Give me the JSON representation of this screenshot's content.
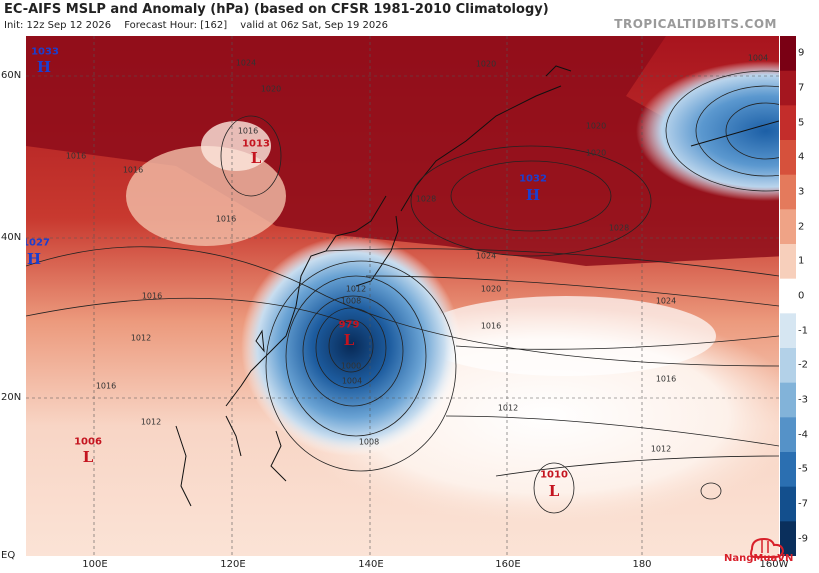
{
  "header": {
    "title": "EC-AIFS MSLP and Anomaly (hPa) (based on CFSR 1981-2010 Climatology)",
    "init": "Init: 12z Sep 12 2026",
    "forecast_hour": "Forecast Hour: [162]",
    "valid": "valid at 06z Sat, Sep 19 2026",
    "brand": "TROPICALTIDBITS.COM"
  },
  "axes": {
    "lat_labels": [
      "60N",
      "40N",
      "20N",
      "EQ"
    ],
    "lon_labels": [
      "100E",
      "120E",
      "140E",
      "160E",
      "180",
      "160W"
    ]
  },
  "colorbar": {
    "labels": [
      "9",
      "7",
      "5",
      "4",
      "3",
      "2",
      "1",
      "0",
      "-1",
      "-2",
      "-3",
      "-4",
      "-5",
      "-7",
      "-9"
    ],
    "colors": [
      "#7a0014",
      "#a4161f",
      "#c32d2b",
      "#d6513c",
      "#e47a5c",
      "#efa386",
      "#f7cfbb",
      "#ffffff",
      "#d6e6f2",
      "#b3d1e8",
      "#82b3d9",
      "#5592c8",
      "#2b6fb1",
      "#134f8d",
      "#0a2f5c"
    ]
  },
  "pressure_systems": [
    {
      "type": "H",
      "value": "1033"
    },
    {
      "type": "L",
      "value": "1013"
    },
    {
      "type": "H",
      "value": "1032"
    },
    {
      "type": "H",
      "value": "1027"
    },
    {
      "type": "L",
      "value": "979"
    },
    {
      "type": "L",
      "value": "1006"
    },
    {
      "type": "L",
      "value": "1010"
    }
  ],
  "isobar_labels": [
    "1024",
    "1020",
    "1016",
    "1016",
    "1016",
    "1012",
    "1008",
    "1004",
    "1000",
    "1008",
    "1012",
    "1016",
    "1020",
    "1024",
    "1028",
    "1028",
    "1004",
    "1012",
    "1016",
    "1020",
    "1024",
    "1016",
    "1012",
    "1020",
    "1016",
    "1020",
    "1012",
    "1016"
  ],
  "watermark": {
    "text": "NangMuaVN"
  }
}
